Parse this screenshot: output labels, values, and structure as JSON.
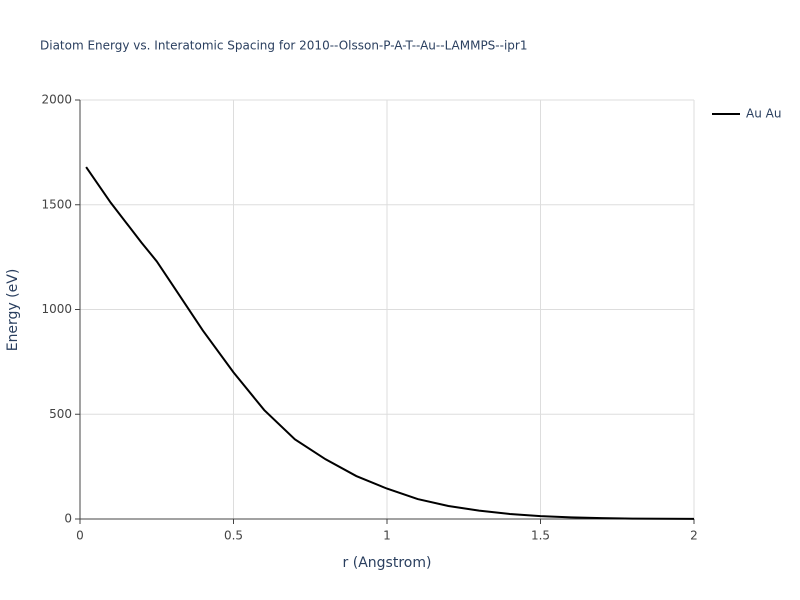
{
  "chart_data": {
    "type": "line",
    "title": "Diatom Energy vs. Interatomic Spacing for 2010--Olsson-P-A-T--Au--LAMMPS--ipr1",
    "x_label": "r (Angstrom)",
    "y_label": "Energy (eV)",
    "x": [
      0.02,
      0.1,
      0.2,
      0.25,
      0.3,
      0.4,
      0.5,
      0.6,
      0.7,
      0.8,
      0.9,
      1.0,
      1.1,
      1.2,
      1.3,
      1.4,
      1.5,
      1.6,
      1.7,
      1.8,
      1.9,
      2.0
    ],
    "series": [
      {
        "name": "Au Au",
        "color": "#000000",
        "values": [
          1680,
          1510,
          1320,
          1230,
          1120,
          900,
          700,
          520,
          380,
          285,
          205,
          145,
          95,
          62,
          40,
          24,
          14,
          8,
          4,
          2,
          1,
          0.3
        ]
      }
    ],
    "xlim": [
      0,
      2
    ],
    "xticks": [
      0,
      0.5,
      1,
      1.5,
      2
    ],
    "ylim": [
      0,
      2000
    ],
    "yticks": [
      0,
      500,
      1000,
      1500,
      2000
    ],
    "grid": true,
    "legend": "right"
  }
}
